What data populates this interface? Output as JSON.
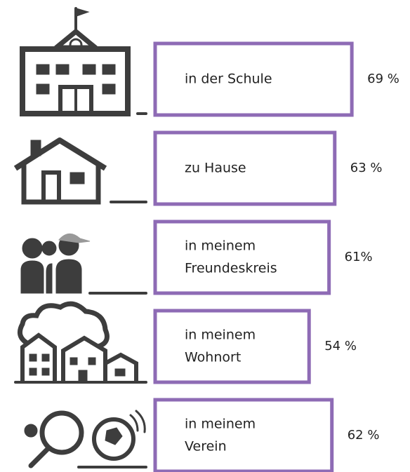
{
  "chart_data": {
    "type": "bar",
    "orientation": "horizontal",
    "categories": [
      [
        "in der Schule"
      ],
      [
        "zu Hause"
      ],
      [
        "in meinem",
        "Freundeskreis"
      ],
      [
        "in meinem",
        "Wohnort"
      ],
      [
        "in meinem",
        "Verein"
      ]
    ],
    "values": [
      69,
      63,
      61,
      54,
      62
    ],
    "value_labels": [
      "69 %",
      "63 %",
      "61%",
      "54 %",
      "62 %"
    ],
    "color": "#8e6bb5"
  }
}
